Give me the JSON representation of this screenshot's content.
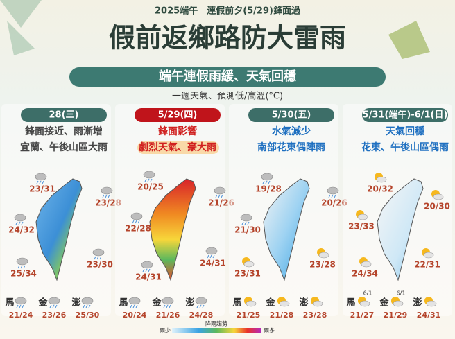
{
  "header": {
    "top": "2025端午　連假前夕(5/29)鋒面過",
    "title": "假前返鄉路防大雷雨",
    "banner": "端午連假雨緩、天氣回穩",
    "note": "一週天氣、預測低/高溫(°C)"
  },
  "panels": [
    {
      "date": "28(三)",
      "line1": "鋒面接近、雨漸增",
      "line2": "宜蘭、午後山區大雨",
      "cities": [
        "23/31",
        "23/28",
        "24/32",
        "23/30",
        "25/34"
      ],
      "islands": [
        {
          "name": "馬",
          "temp": "21/24"
        },
        {
          "name": "金",
          "temp": "23/26"
        },
        {
          "name": "澎",
          "temp": "25/30"
        }
      ]
    },
    {
      "date": "5/29(四)",
      "line1": "鋒面影響",
      "line2": "劇烈天氣、豪大雨",
      "cities": [
        "20/25",
        "21/26",
        "22/28",
        "24/31",
        "24/31"
      ],
      "islands": [
        {
          "name": "馬",
          "temp": "20/24"
        },
        {
          "name": "金",
          "temp": "21/26"
        },
        {
          "name": "澎",
          "temp": "24/28"
        }
      ]
    },
    {
      "date": "5/30(五)",
      "line1": "水氣減少",
      "line2": "南部花東偶陣雨",
      "cities": [
        "19/28",
        "20/26",
        "21/30",
        "23/28",
        "23/31"
      ],
      "islands": [
        {
          "name": "馬",
          "temp": "21/25"
        },
        {
          "name": "金",
          "temp": "21/28"
        },
        {
          "name": "澎",
          "temp": "23/28"
        }
      ]
    },
    {
      "date": "5/31(端午)-6/1(日)",
      "line1": "天氣回穩",
      "line2": "花東、午後山區偶雨",
      "cities": [
        "20/32",
        "20/30",
        "23/33",
        "22/31",
        "24/34"
      ],
      "islands": [
        {
          "name": "馬",
          "temp": "21/27",
          "date": "6/1"
        },
        {
          "name": "金",
          "temp": "21/29",
          "date": "6/1"
        },
        {
          "name": "澎",
          "temp": "24/31"
        }
      ]
    }
  ],
  "legend": {
    "low": "雨少",
    "title": "降雨趨勢",
    "high": "雨多"
  }
}
